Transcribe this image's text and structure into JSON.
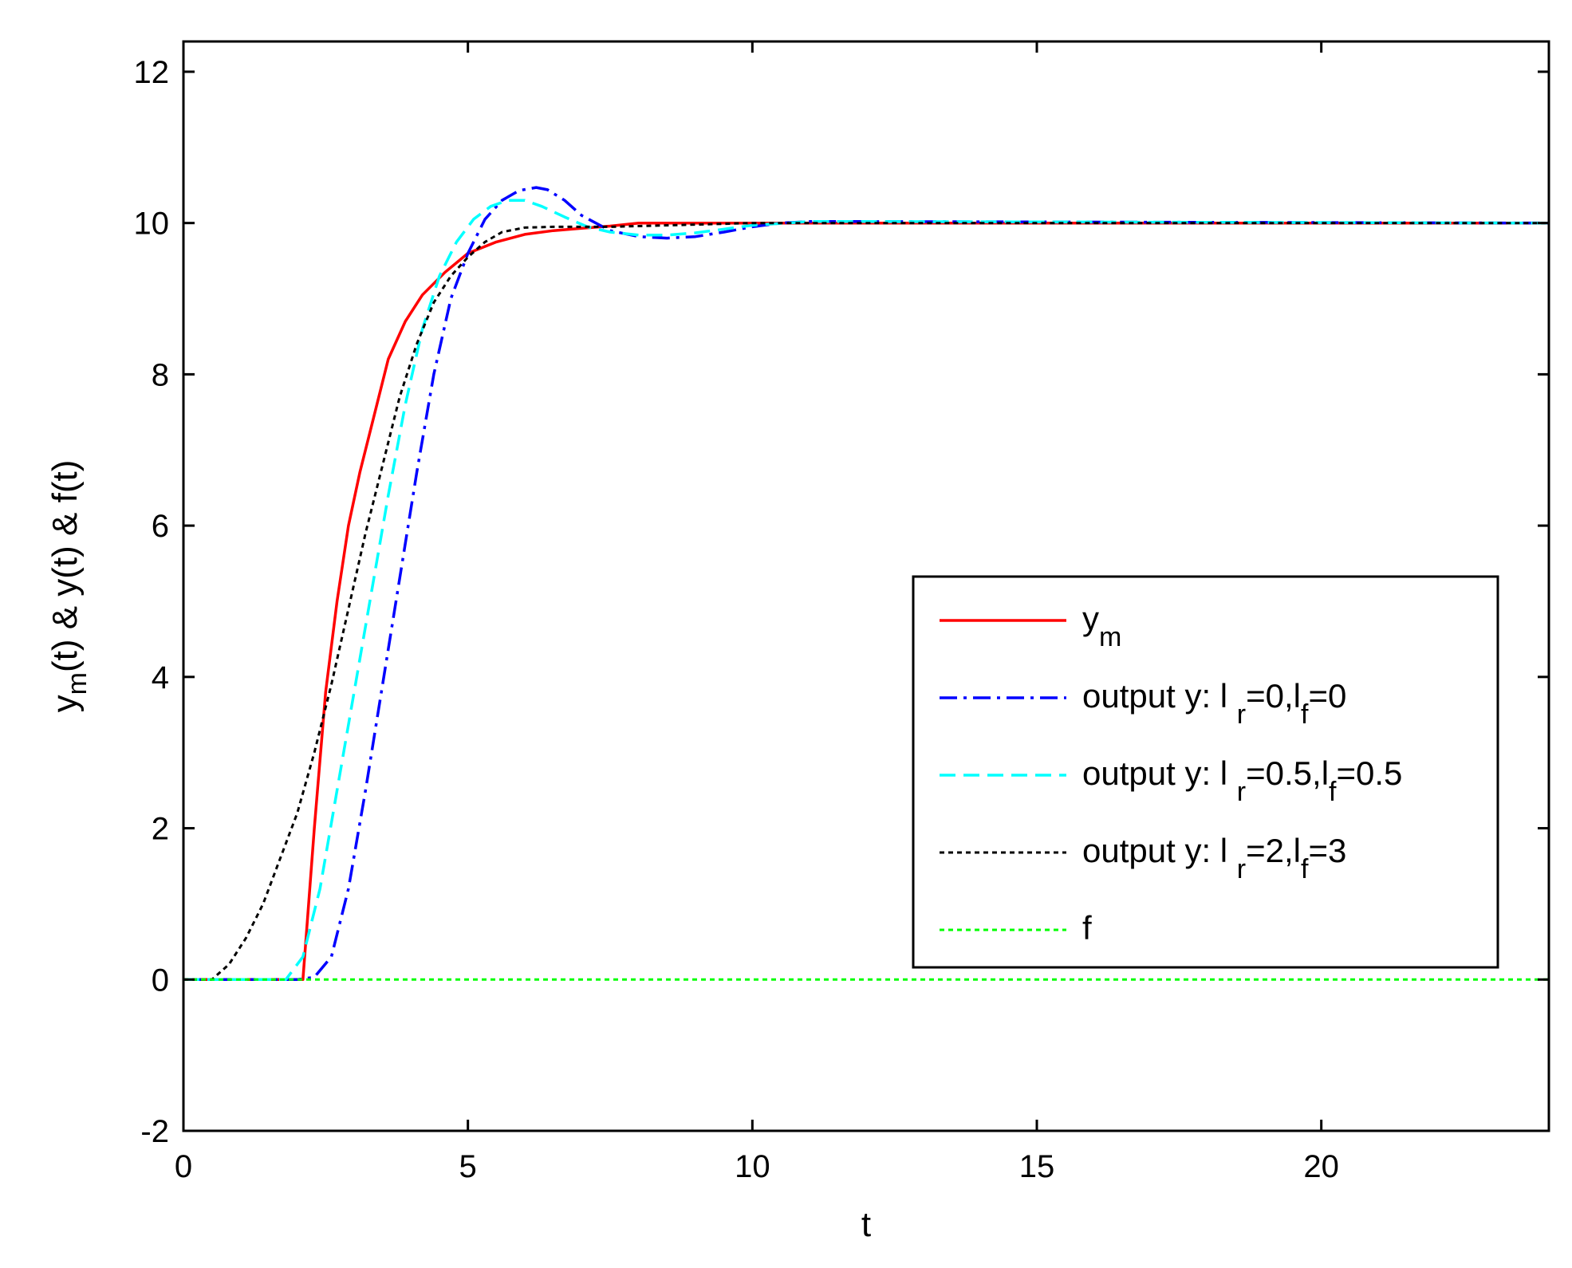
{
  "chart_data": {
    "type": "line",
    "xlabel": "t",
    "ylabel": {
      "base": "y",
      "sub": "m",
      "rest": "(t) & y(t) & f(t)"
    },
    "xlim": [
      0,
      24
    ],
    "ylim": [
      -2,
      12.4
    ],
    "xticks": [
      0,
      5,
      10,
      15,
      20
    ],
    "yticks": [
      -2,
      0,
      2,
      4,
      6,
      8,
      10,
      12
    ],
    "grid": false,
    "legend_position": "center-right",
    "series": [
      {
        "label_parts": [
          {
            "t": "y"
          },
          {
            "t": "m",
            "sub": true
          }
        ],
        "color": "#ff0000",
        "dash": "solid",
        "x": [
          0,
          2.1,
          2.15,
          2.3,
          2.5,
          2.7,
          2.9,
          3.1,
          3.3,
          3.6,
          3.9,
          4.2,
          4.6,
          5.0,
          5.5,
          6.0,
          6.5,
          7.0,
          7.5,
          8.0,
          9.0,
          10,
          12,
          24
        ],
        "y": [
          0,
          0,
          0.5,
          2.0,
          3.8,
          5.0,
          6.0,
          6.7,
          7.3,
          8.2,
          8.7,
          9.05,
          9.35,
          9.6,
          9.75,
          9.85,
          9.9,
          9.93,
          9.96,
          10.0,
          10.0,
          10.0,
          10.0,
          10.0
        ]
      },
      {
        "label_parts": [
          {
            "t": "output y: l "
          },
          {
            "t": "r",
            "sub": true
          },
          {
            "t": "=0,l"
          },
          {
            "t": "f",
            "sub": true
          },
          {
            "t": "=0"
          }
        ],
        "color": "#0000ff",
        "dash": "dashdot",
        "x": [
          0,
          2.0,
          2.3,
          2.6,
          2.9,
          3.2,
          3.5,
          3.8,
          4.1,
          4.4,
          4.7,
          5.0,
          5.3,
          5.6,
          5.9,
          6.2,
          6.4,
          6.7,
          7.0,
          7.5,
          8.0,
          8.5,
          9.0,
          9.5,
          10.0,
          10.5,
          11,
          12,
          24
        ],
        "y": [
          0,
          0,
          0.03,
          0.3,
          1.2,
          2.5,
          3.9,
          5.3,
          6.7,
          8.0,
          9.0,
          9.6,
          10.05,
          10.3,
          10.43,
          10.47,
          10.44,
          10.3,
          10.1,
          9.9,
          9.82,
          9.8,
          9.82,
          9.88,
          9.95,
          10.0,
          10.02,
          10.02,
          10.0
        ]
      },
      {
        "label_parts": [
          {
            "t": "output y: l "
          },
          {
            "t": "r",
            "sub": true
          },
          {
            "t": "=0.5,l"
          },
          {
            "t": "f",
            "sub": true
          },
          {
            "t": "=0.5"
          }
        ],
        "color": "#00ffff",
        "dash": "dashed",
        "x": [
          0,
          1.8,
          2.1,
          2.4,
          2.7,
          3.0,
          3.3,
          3.6,
          3.9,
          4.2,
          4.5,
          4.8,
          5.1,
          5.4,
          5.7,
          6.0,
          6.3,
          6.7,
          7.1,
          7.5,
          8.0,
          8.5,
          9.0,
          9.5,
          10.0,
          11,
          12,
          24
        ],
        "y": [
          0,
          0,
          0.3,
          1.2,
          2.5,
          3.8,
          5.1,
          6.4,
          7.6,
          8.6,
          9.3,
          9.75,
          10.05,
          10.22,
          10.3,
          10.3,
          10.22,
          10.08,
          9.95,
          9.88,
          9.84,
          9.84,
          9.87,
          9.92,
          9.97,
          10.02,
          10.02,
          10.0
        ]
      },
      {
        "label_parts": [
          {
            "t": "output y: l "
          },
          {
            "t": "r",
            "sub": true
          },
          {
            "t": "=2,l"
          },
          {
            "t": "f",
            "sub": true
          },
          {
            "t": "=3"
          }
        ],
        "color": "#000000",
        "dash": "dotted",
        "x": [
          0,
          0.5,
          0.8,
          1.1,
          1.4,
          1.7,
          2.0,
          2.3,
          2.6,
          2.9,
          3.2,
          3.5,
          3.8,
          4.1,
          4.4,
          4.7,
          5.0,
          5.3,
          5.6,
          6.0,
          6.5,
          7.0,
          7.5,
          8.0,
          9.0,
          10,
          12,
          24
        ],
        "y": [
          0,
          0,
          0.2,
          0.55,
          1.0,
          1.6,
          2.2,
          3.0,
          3.9,
          4.9,
          5.9,
          6.8,
          7.7,
          8.4,
          8.95,
          9.3,
          9.55,
          9.75,
          9.88,
          9.94,
          9.95,
          9.95,
          9.95,
          9.96,
          9.98,
          10.0,
          10.0,
          10.0
        ]
      },
      {
        "label_parts": [
          {
            "t": "f"
          }
        ],
        "color": "#00ff00",
        "dash": "dotted",
        "x": [
          0,
          24
        ],
        "y": [
          0,
          0
        ]
      }
    ]
  }
}
